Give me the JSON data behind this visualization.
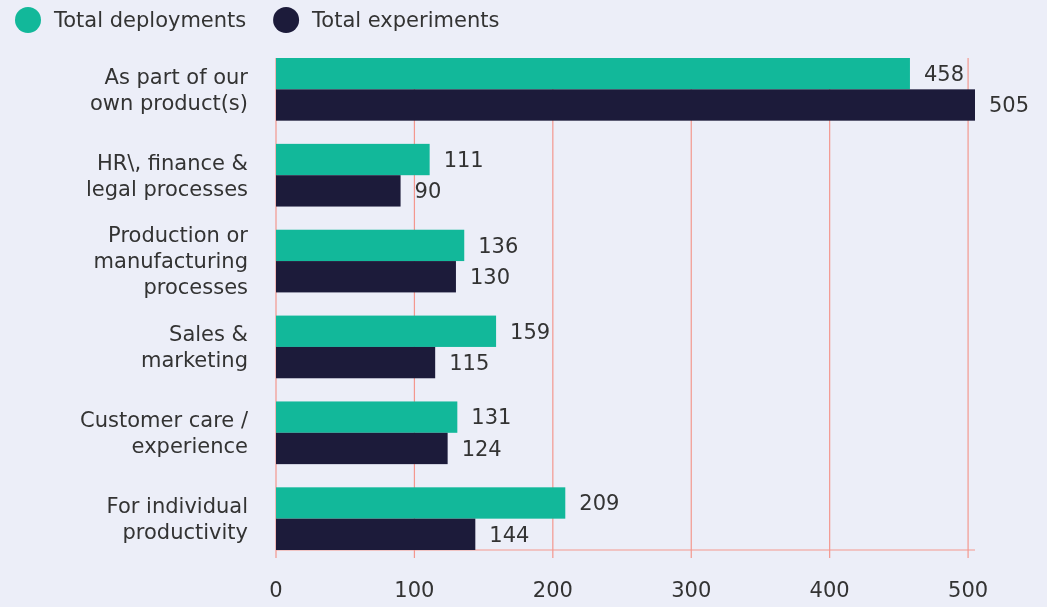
{
  "chart_data": {
    "type": "bar",
    "orientation": "horizontal",
    "categories": [
      "As part of our own product(s)",
      "HR\\, finance & legal processes",
      "Production or manufacturing processes",
      "Sales & marketing",
      "Customer care / experience",
      "For individual productivity"
    ],
    "series": [
      {
        "name": "Total deployments",
        "color": "#12b89a",
        "values": [
          458,
          111,
          136,
          159,
          131,
          209
        ]
      },
      {
        "name": "Total experiments",
        "color": "#1c1b3a",
        "values": [
          505,
          90,
          130,
          115,
          124,
          144
        ]
      }
    ],
    "xlim": [
      0,
      505
    ],
    "xticks": [
      0,
      100,
      200,
      300,
      400,
      500
    ],
    "grid": "x",
    "legend": "top left",
    "data_labels": true
  }
}
